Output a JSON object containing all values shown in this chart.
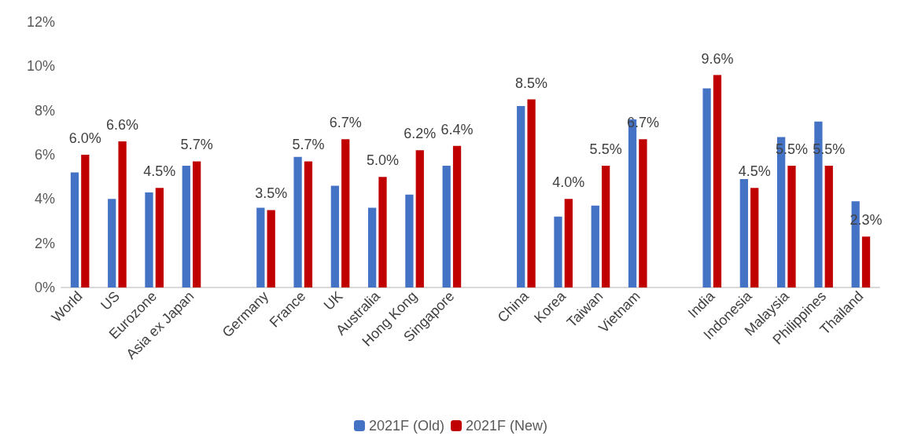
{
  "chart_data": {
    "type": "bar",
    "categories": [
      "World",
      "US",
      "Eurozone",
      "Asia ex Japan",
      null,
      "Germany",
      "France",
      "UK",
      "Australia",
      "Hong Kong",
      "Singapore",
      null,
      "China",
      "Korea",
      "Taiwan",
      "Vietnam",
      null,
      "India",
      "Indonesia",
      "Malaysia",
      "Philippines",
      "Thailand"
    ],
    "series": [
      {
        "name": "2021F (Old)",
        "color": "#4472c4",
        "values": [
          5.2,
          4.0,
          4.3,
          5.5,
          null,
          3.6,
          5.9,
          4.6,
          3.6,
          4.2,
          5.5,
          null,
          8.2,
          3.2,
          3.7,
          7.6,
          null,
          9.0,
          4.9,
          6.8,
          7.5,
          3.9
        ]
      },
      {
        "name": "2021F (New)",
        "color": "#c00000",
        "values": [
          6.0,
          6.6,
          4.5,
          5.7,
          null,
          3.5,
          5.7,
          6.7,
          5.0,
          6.2,
          6.4,
          null,
          8.5,
          4.0,
          5.5,
          6.7,
          null,
          9.6,
          4.5,
          5.5,
          5.5,
          2.3
        ],
        "value_labels": [
          "6.0%",
          "6.6%",
          "4.5%",
          "5.7%",
          null,
          "3.5%",
          "5.7%",
          "6.7%",
          "5.0%",
          "6.2%",
          "6.4%",
          null,
          "8.5%",
          "4.0%",
          "5.5%",
          "6.7%",
          null,
          "9.6%",
          "4.5%",
          "5.5%",
          "5.5%",
          "2.3%"
        ]
      }
    ],
    "ylim": [
      0,
      12
    ],
    "yticks": [
      {
        "value": 0,
        "label": "0%"
      },
      {
        "value": 2,
        "label": "2%"
      },
      {
        "value": 4,
        "label": "4%"
      },
      {
        "value": 6,
        "label": "6%"
      },
      {
        "value": 8,
        "label": "8%"
      },
      {
        "value": 10,
        "label": "10%"
      },
      {
        "value": 12,
        "label": "12%"
      }
    ],
    "grid": false,
    "legend": "bottom"
  }
}
